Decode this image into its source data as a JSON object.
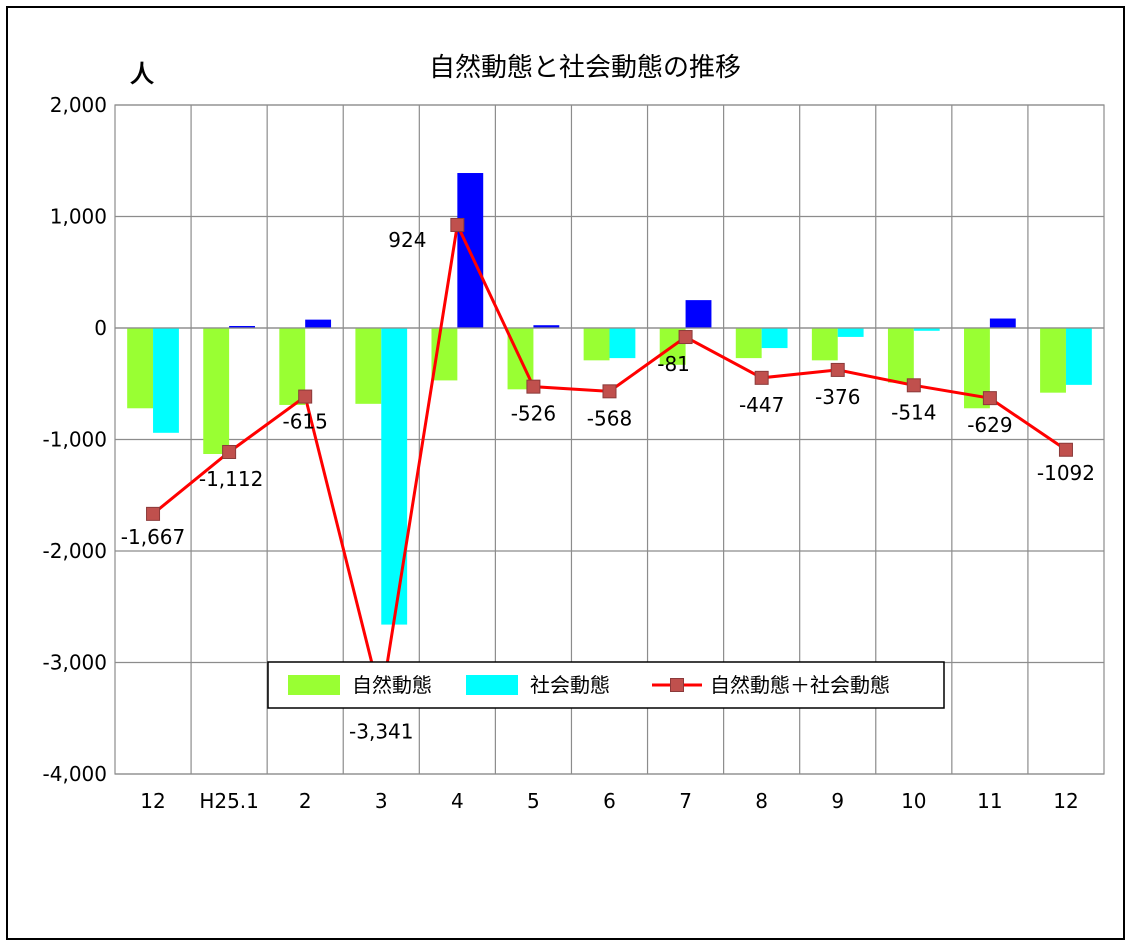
{
  "chart_data": {
    "type": "bar",
    "title": "自然動態と社会動態の推移",
    "unit_label": "人",
    "categories": [
      "12",
      "H25.1",
      "2",
      "3",
      "4",
      "5",
      "6",
      "7",
      "8",
      "9",
      "10",
      "11",
      "12"
    ],
    "ylim": [
      -4000,
      2000
    ],
    "yticks": [
      2000,
      1000,
      0,
      -1000,
      -2000,
      -3000,
      -4000
    ],
    "ytick_labels": [
      "2,000",
      "1,000",
      "0",
      "-1,000",
      "-2,000",
      "-3,000",
      "-4,000"
    ],
    "grid": true,
    "legend_position": "bottom",
    "series": [
      {
        "name": "自然動態",
        "type": "bar",
        "color": "#99ff33",
        "values": [
          -720,
          -1130,
          -690,
          -680,
          -470,
          -550,
          -290,
          -330,
          -270,
          -290,
          -490,
          -720,
          -580
        ]
      },
      {
        "name": "社会動態",
        "type": "bar",
        "color": "#00ffff",
        "negative_color": "#00ffff",
        "positive_color": "#0000ff",
        "values": [
          -940,
          18,
          75,
          -2660,
          1390,
          25,
          -270,
          250,
          -180,
          -80,
          -25,
          85,
          -510
        ]
      },
      {
        "name": "自然動態＋社会動態",
        "type": "line",
        "color": "#ff0000",
        "marker_color": "#c0504d",
        "values": [
          -1667,
          -1112,
          -615,
          -3341,
          924,
          -526,
          -568,
          -81,
          -447,
          -376,
          -514,
          -629,
          -1092
        ],
        "labels": [
          "-1,667",
          "-1,112",
          "-615",
          "-3,341",
          "924",
          "-526",
          "-568",
          "-81",
          "-447",
          "-376",
          "-514",
          "-629",
          "-1092"
        ]
      }
    ]
  }
}
